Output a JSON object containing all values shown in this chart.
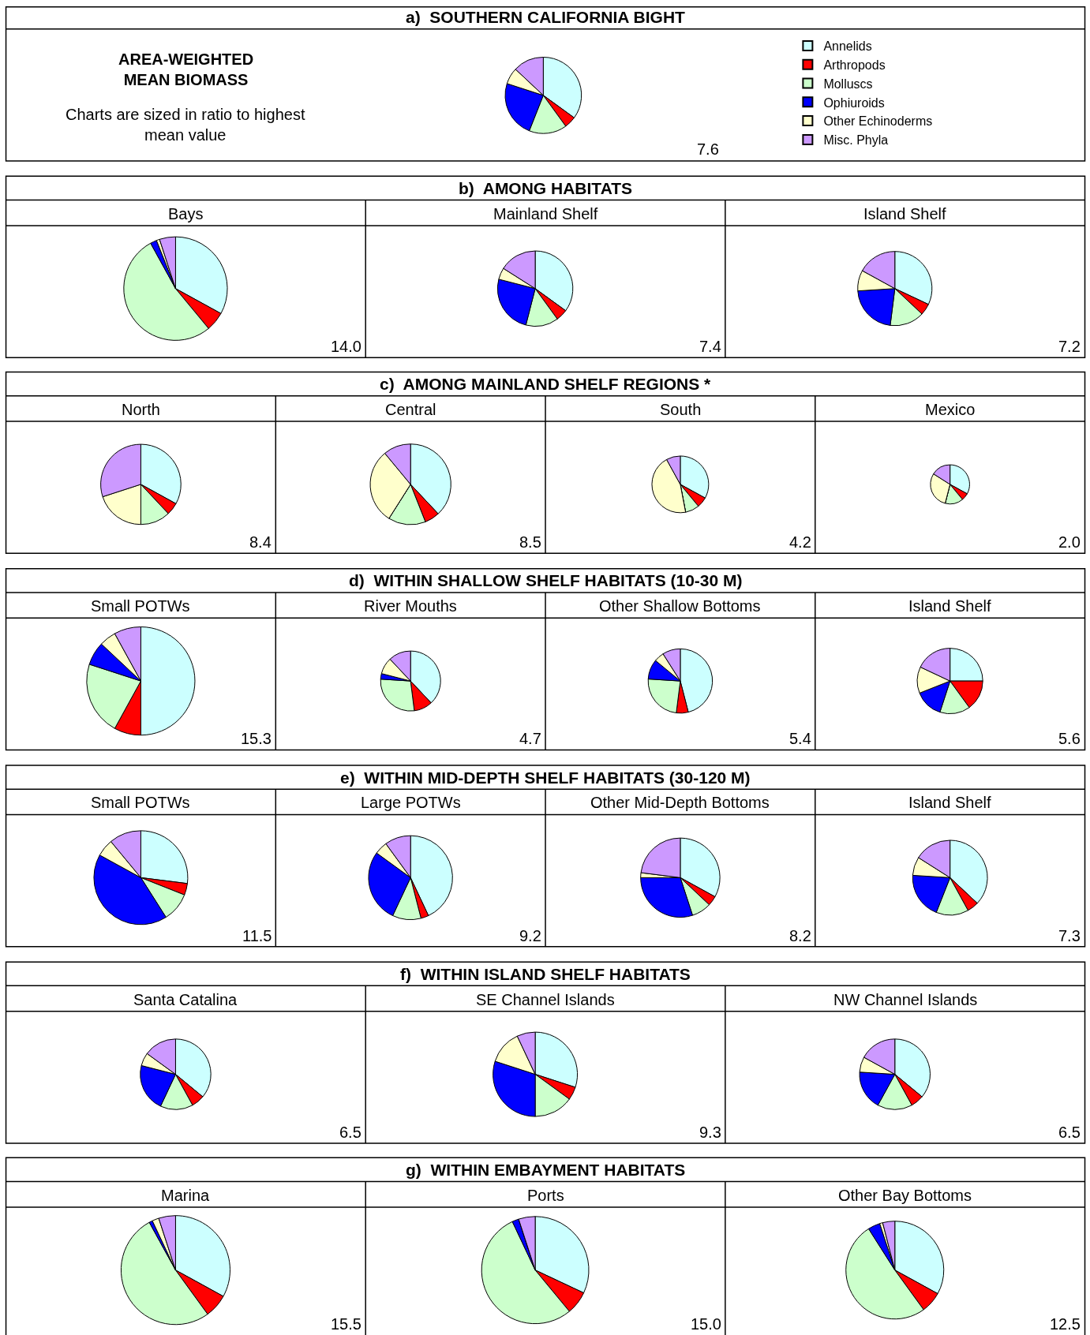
{
  "chart_data": [
    {
      "type": "pie",
      "title": "a)  SOUTHERN CALIFORNIA BIGHT",
      "categories": [
        "Annelids",
        "Arthropods",
        "Molluscs",
        "Ophiuroids",
        "Other Echinoderms",
        "Misc. Phyla"
      ],
      "colors": [
        "#ccffff",
        "#ff0000",
        "#ccffcc",
        "#0000ff",
        "#ffffcc",
        "#cc99ff"
      ],
      "values": [
        35,
        5,
        16,
        24,
        7,
        13
      ],
      "legend": "right",
      "annotations": [
        "AREA-WEIGHTED MEAN BIOMASS",
        "Charts are sized in ratio to highest mean value",
        "7.6"
      ]
    },
    {
      "type": "pie",
      "title": "b)  AMONG HABITATS",
      "categories": [
        null,
        null,
        null,
        null,
        null,
        null
      ],
      "colors": [
        "#ccffff",
        "#ff0000",
        "#ccffcc",
        "#0000ff",
        "#ffffcc",
        "#cc99ff"
      ],
      "series": [
        {
          "name": "Bays",
          "values": [
            33,
            6,
            53,
            2,
            1,
            5
          ]
        },
        {
          "name": "Mainland Shelf",
          "values": [
            35,
            5,
            14,
            25,
            5,
            16
          ]
        },
        {
          "name": "Island Shelf",
          "values": [
            32,
            5,
            15,
            22,
            9,
            17
          ]
        }
      ],
      "annotations": [
        "14.0",
        "7.4",
        "7.2"
      ]
    },
    {
      "type": "pie",
      "title": "c)  AMONG MAINLAND SHELF REGIONS *",
      "categories": [
        null,
        null,
        null,
        null,
        null,
        null
      ],
      "colors": [
        "#ccffff",
        "#ff0000",
        "#ccffcc",
        "#0000ff",
        "#ffffcc",
        "#cc99ff"
      ],
      "series": [
        {
          "name": "North",
          "values": [
            33,
            5,
            12,
            0,
            20,
            30
          ]
        },
        {
          "name": "Central",
          "values": [
            38,
            6,
            15,
            0,
            30,
            11
          ]
        },
        {
          "name": "South",
          "values": [
            33,
            6,
            8,
            0,
            45,
            8
          ]
        },
        {
          "name": "Mexico",
          "values": [
            33,
            6,
            15,
            0,
            30,
            16
          ]
        }
      ],
      "annotations": [
        "8.4",
        "8.5",
        "4.2",
        "2.0"
      ]
    },
    {
      "type": "pie",
      "title": "d)  WITHIN SHALLOW SHELF HABITATS (10-30 M)",
      "categories": [
        null,
        null,
        null,
        null,
        null,
        null
      ],
      "colors": [
        "#ccffff",
        "#ff0000",
        "#ccffcc",
        "#0000ff",
        "#ffffcc",
        "#cc99ff"
      ],
      "series": [
        {
          "name": "Small POTWs",
          "values": [
            50,
            8,
            22,
            7,
            5,
            8
          ]
        },
        {
          "name": "River Mouths",
          "values": [
            38,
            10,
            28,
            3,
            9,
            12
          ]
        },
        {
          "name": "Other Shallow Bottoms",
          "values": [
            46,
            6,
            24,
            10,
            5,
            9
          ]
        },
        {
          "name": "Island Shelf",
          "values": [
            25,
            15,
            15,
            14,
            13,
            18
          ]
        }
      ],
      "annotations": [
        "15.3",
        "4.7",
        "5.4",
        "5.6"
      ]
    },
    {
      "type": "pie",
      "title": "e)  WITHIN MID-DEPTH SHELF HABITATS (30-120 M)",
      "categories": [
        null,
        null,
        null,
        null,
        null,
        null
      ],
      "colors": [
        "#ccffff",
        "#ff0000",
        "#ccffcc",
        "#0000ff",
        "#ffffcc",
        "#cc99ff"
      ],
      "series": [
        {
          "name": "Small POTWs",
          "values": [
            27,
            4,
            10,
            42,
            6,
            11
          ]
        },
        {
          "name": "Large POTWs",
          "values": [
            43,
            3,
            11,
            28,
            5,
            10
          ]
        },
        {
          "name": "Other Mid-Depth Bottoms",
          "values": [
            33,
            4,
            8,
            30,
            2,
            23
          ]
        },
        {
          "name": "Island Shelf",
          "values": [
            37,
            5,
            14,
            20,
            8,
            16
          ]
        }
      ],
      "annotations": [
        "11.5",
        "9.2",
        "8.2",
        "7.3"
      ]
    },
    {
      "type": "pie",
      "title": "f)  WITHIN ISLAND SHELF HABITATS",
      "categories": [
        null,
        null,
        null,
        null,
        null,
        null
      ],
      "colors": [
        "#ccffff",
        "#ff0000",
        "#ccffcc",
        "#0000ff",
        "#ffffcc",
        "#cc99ff"
      ],
      "series": [
        {
          "name": "Santa Catalina",
          "values": [
            36,
            6,
            15,
            22,
            6,
            15
          ]
        },
        {
          "name": "SE Channel Islands",
          "values": [
            30,
            5,
            15,
            30,
            13,
            7
          ]
        },
        {
          "name": "NW Channel Islands",
          "values": [
            36,
            6,
            16,
            18,
            7,
            17
          ]
        }
      ],
      "annotations": [
        "6.5",
        "9.3",
        "6.5"
      ]
    },
    {
      "type": "pie",
      "title": "g)  WITHIN EMBAYMENT HABITATS",
      "categories": [
        null,
        null,
        null,
        null,
        null,
        null
      ],
      "colors": [
        "#ccffff",
        "#ff0000",
        "#ccffcc",
        "#0000ff",
        "#ffffcc",
        "#cc99ff"
      ],
      "series": [
        {
          "name": "Marina",
          "values": [
            33,
            7,
            52,
            1,
            2,
            5
          ]
        },
        {
          "name": "Ports",
          "values": [
            32,
            7,
            54,
            2,
            0,
            5
          ]
        },
        {
          "name": "Other Bay Bottoms",
          "values": [
            33,
            7,
            51,
            4,
            1,
            4
          ]
        }
      ],
      "annotations": [
        "15.5",
        "15.0",
        "12.5"
      ]
    }
  ]
}
